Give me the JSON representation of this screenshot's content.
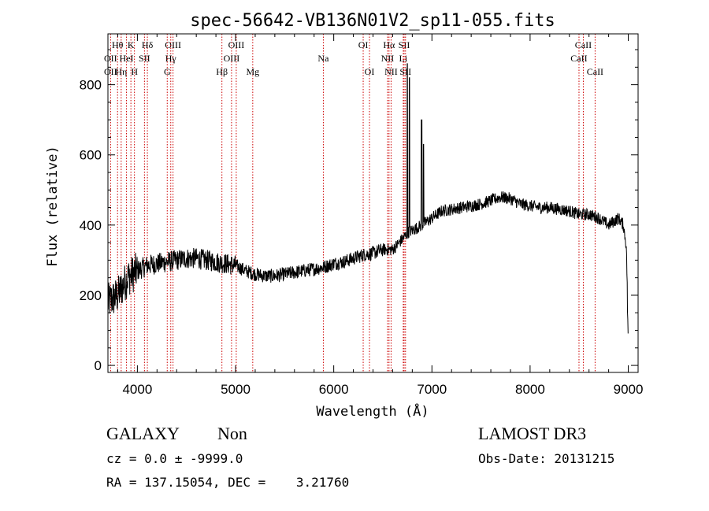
{
  "chart_data": {
    "type": "line",
    "title": "spec-56642-VB136N01V2_sp11-055.fits",
    "xlabel": "Wavelength (Å)",
    "ylabel": "Flux (relative)",
    "xlim": [
      3700,
      9100
    ],
    "ylim": [
      -20,
      945
    ],
    "x_ticks": [
      4000,
      5000,
      6000,
      7000,
      8000,
      9000
    ],
    "y_ticks": [
      0,
      200,
      400,
      600,
      800
    ],
    "grid": false,
    "line_color": "#000000",
    "marker_color": "#cc0000",
    "series": [
      {
        "name": "flux",
        "points": [
          [
            3700,
            180
          ],
          [
            3800,
            200
          ],
          [
            3900,
            250
          ],
          [
            4000,
            270
          ],
          [
            4100,
            285
          ],
          [
            4200,
            290
          ],
          [
            4300,
            295
          ],
          [
            4400,
            300
          ],
          [
            4500,
            305
          ],
          [
            4600,
            305
          ],
          [
            4700,
            300
          ],
          [
            4800,
            295
          ],
          [
            4900,
            290
          ],
          [
            5000,
            285
          ],
          [
            5100,
            270
          ],
          [
            5200,
            260
          ],
          [
            5300,
            255
          ],
          [
            5400,
            255
          ],
          [
            5500,
            260
          ],
          [
            5600,
            265
          ],
          [
            5700,
            270
          ],
          [
            5800,
            275
          ],
          [
            5900,
            280
          ],
          [
            6000,
            290
          ],
          [
            6100,
            295
          ],
          [
            6200,
            305
          ],
          [
            6300,
            315
          ],
          [
            6400,
            320
          ],
          [
            6500,
            330
          ],
          [
            6600,
            330
          ],
          [
            6650,
            345
          ],
          [
            6700,
            360
          ],
          [
            6760,
            380
          ],
          [
            6800,
            385
          ],
          [
            6900,
            400
          ],
          [
            7000,
            420
          ],
          [
            7100,
            440
          ],
          [
            7200,
            445
          ],
          [
            7300,
            450
          ],
          [
            7400,
            455
          ],
          [
            7500,
            460
          ],
          [
            7600,
            470
          ],
          [
            7700,
            480
          ],
          [
            7800,
            475
          ],
          [
            7900,
            460
          ],
          [
            8000,
            455
          ],
          [
            8100,
            450
          ],
          [
            8200,
            450
          ],
          [
            8300,
            445
          ],
          [
            8400,
            440
          ],
          [
            8500,
            430
          ],
          [
            8600,
            430
          ],
          [
            8700,
            420
          ],
          [
            8800,
            400
          ],
          [
            8900,
            420
          ],
          [
            8950,
            400
          ],
          [
            8980,
            340
          ],
          [
            9000,
            100
          ]
        ],
        "emission_peaks": [
          {
            "x": 6750,
            "y": 860
          },
          {
            "x": 6770,
            "y": 820
          },
          {
            "x": 6895,
            "y": 700
          },
          {
            "x": 6915,
            "y": 630
          }
        ]
      }
    ],
    "line_markers": [
      {
        "label": "Hθ",
        "x": 3798,
        "row": 1
      },
      {
        "label": "OII",
        "x": 3727,
        "row": 2
      },
      {
        "label": "OII",
        "x": 3727,
        "row": 3
      },
      {
        "label": "Hη",
        "x": 3835,
        "row": 3
      },
      {
        "label": "HeI",
        "x": 3889,
        "row": 2
      },
      {
        "label": "K",
        "x": 3934,
        "row": 1
      },
      {
        "label": "SII",
        "x": 4072,
        "row": 2
      },
      {
        "label": "H",
        "x": 3970,
        "row": 3
      },
      {
        "label": "Hδ",
        "x": 4102,
        "row": 1
      },
      {
        "label": "OIII",
        "x": 4363,
        "row": 1
      },
      {
        "label": "Hγ",
        "x": 4340,
        "row": 2
      },
      {
        "label": "G",
        "x": 4304,
        "row": 3
      },
      {
        "label": "OIII",
        "x": 5007,
        "row": 1
      },
      {
        "label": "OIII",
        "x": 4959,
        "row": 2
      },
      {
        "label": "Hβ",
        "x": 4861,
        "row": 3
      },
      {
        "label": "Mg",
        "x": 5175,
        "row": 3
      },
      {
        "label": "Na",
        "x": 5894,
        "row": 2
      },
      {
        "label": "OI",
        "x": 6300,
        "row": 1
      },
      {
        "label": "OI",
        "x": 6364,
        "row": 3
      },
      {
        "label": "Hα",
        "x": 6563,
        "row": 1
      },
      {
        "label": "NII",
        "x": 6548,
        "row": 2
      },
      {
        "label": "NII",
        "x": 6584,
        "row": 3
      },
      {
        "label": "SII",
        "x": 6717,
        "row": 1
      },
      {
        "label": "Li",
        "x": 6708,
        "row": 2
      },
      {
        "label": "SII",
        "x": 6731,
        "row": 3
      },
      {
        "label": "CaII",
        "x": 8542,
        "row": 1
      },
      {
        "label": "CaII",
        "x": 8498,
        "row": 2
      },
      {
        "label": "CaII",
        "x": 8662,
        "row": 3
      }
    ]
  },
  "info": {
    "object_class": "GALAXY",
    "subclass": "Non",
    "cz": "cz = 0.0 ± -9999.0",
    "radec": "RA = 137.15054, DEC =    3.21760",
    "survey": "LAMOST DR3",
    "obs_date": "Obs-Date: 20131215"
  }
}
